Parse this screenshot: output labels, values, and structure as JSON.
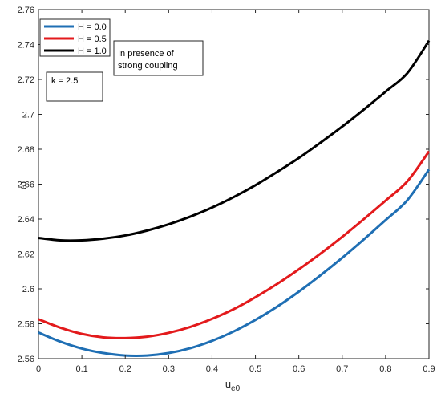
{
  "chart_data": {
    "type": "line",
    "xlabel_main": "u",
    "xlabel_sub": "e0",
    "ylabel": "ω",
    "xlim": [
      0,
      0.9
    ],
    "ylim": [
      2.56,
      2.76
    ],
    "xticks": [
      0,
      0.1,
      0.2,
      0.3,
      0.4,
      0.5,
      0.6,
      0.7,
      0.8,
      0.9
    ],
    "yticks": [
      2.56,
      2.58,
      2.6,
      2.62,
      2.64,
      2.66,
      2.68,
      2.7,
      2.72,
      2.74,
      2.76
    ],
    "grid": false,
    "legend_position": "top-left",
    "series": [
      {
        "name": "H = 0.0",
        "color": "#1f6fb4",
        "x": [
          0,
          0.05,
          0.1,
          0.15,
          0.2,
          0.25,
          0.3,
          0.35,
          0.4,
          0.45,
          0.5,
          0.55,
          0.6,
          0.65,
          0.7,
          0.75,
          0.8,
          0.85,
          0.9
        ],
        "y": [
          2.575,
          2.5698,
          2.5658,
          2.5632,
          2.5618,
          2.5618,
          2.5632,
          2.566,
          2.5702,
          2.5756,
          2.5822,
          2.5898,
          2.5984,
          2.6078,
          2.6178,
          2.6284,
          2.6394,
          2.6508,
          2.6684
        ]
      },
      {
        "name": "H = 0.5",
        "color": "#e31a1c",
        "x": [
          0,
          0.05,
          0.1,
          0.15,
          0.2,
          0.25,
          0.3,
          0.35,
          0.4,
          0.45,
          0.5,
          0.55,
          0.6,
          0.65,
          0.7,
          0.75,
          0.8,
          0.85,
          0.9
        ],
        "y": [
          2.5826,
          2.5778,
          2.5742,
          2.5722,
          2.5718,
          2.5726,
          2.5748,
          2.5782,
          2.5828,
          2.5884,
          2.5952,
          2.6028,
          2.6112,
          2.6202,
          2.6298,
          2.64,
          2.6506,
          2.6616,
          2.6788
        ]
      },
      {
        "name": "H = 1.0",
        "color": "#000000",
        "x": [
          0,
          0.05,
          0.1,
          0.15,
          0.2,
          0.25,
          0.3,
          0.35,
          0.4,
          0.45,
          0.5,
          0.55,
          0.6,
          0.65,
          0.7,
          0.75,
          0.8,
          0.85,
          0.9
        ],
        "y": [
          2.6292,
          2.6278,
          2.6278,
          2.6288,
          2.6306,
          2.6334,
          2.637,
          2.6414,
          2.6466,
          2.6526,
          2.6594,
          2.667,
          2.675,
          2.6838,
          2.693,
          2.7028,
          2.713,
          2.7236,
          2.7422
        ]
      }
    ],
    "annotations": {
      "k_label": "k = 2.5",
      "coupling_line1": "In presence of",
      "coupling_line2": "strong coupling"
    }
  }
}
